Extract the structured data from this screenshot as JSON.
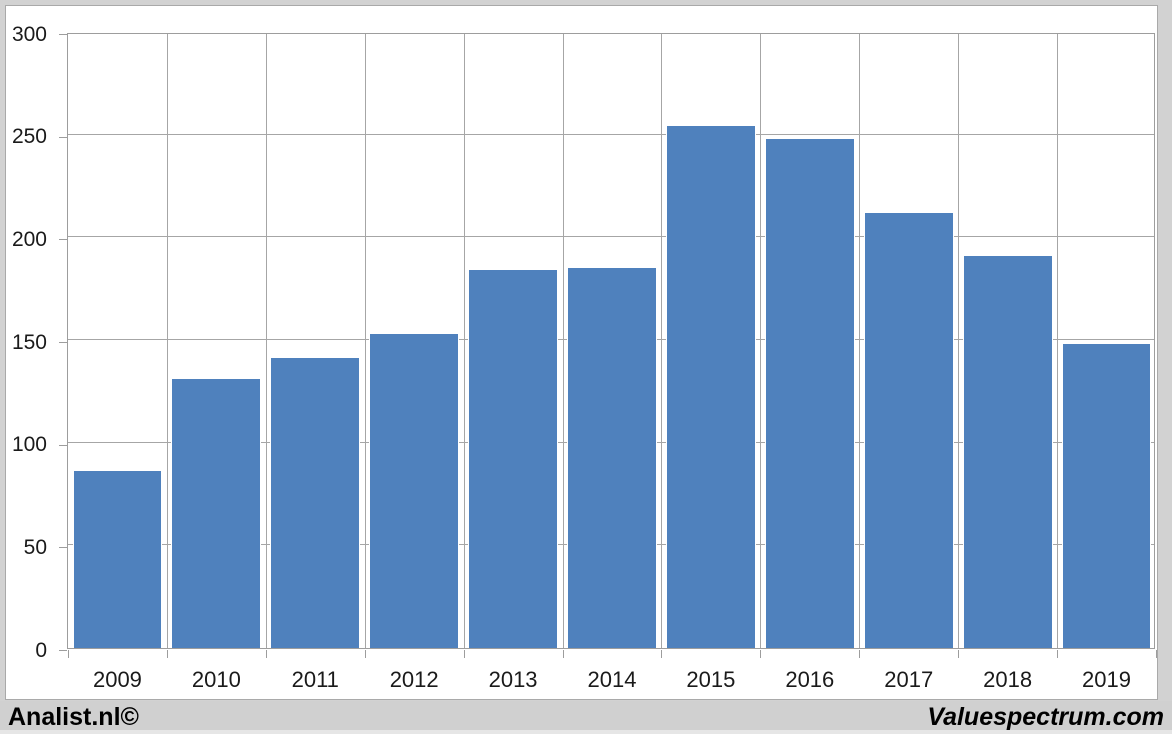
{
  "footer": {
    "left_brand": "Analist.nl©",
    "right_brand": "Valuespectrum.com"
  },
  "chart_data": {
    "type": "bar",
    "title": "",
    "xlabel": "",
    "ylabel": "",
    "categories": [
      "2009",
      "2010",
      "2011",
      "2012",
      "2013",
      "2014",
      "2015",
      "2016",
      "2017",
      "2018",
      "2019"
    ],
    "values": [
      86,
      131,
      141,
      153,
      184,
      185,
      254,
      248,
      212,
      191,
      148
    ],
    "ylim": [
      0,
      300
    ],
    "yticks": [
      0,
      50,
      100,
      150,
      200,
      250,
      300
    ],
    "grid": true,
    "legend": false,
    "colors": {
      "bar": "#4f81bd",
      "gridline": "#a6a6a6",
      "plot_border": "#9d9d9d",
      "axis_text": "#1a1a1a",
      "chart_background": "#ffffff",
      "outer_background": "#d2d2d2"
    }
  }
}
